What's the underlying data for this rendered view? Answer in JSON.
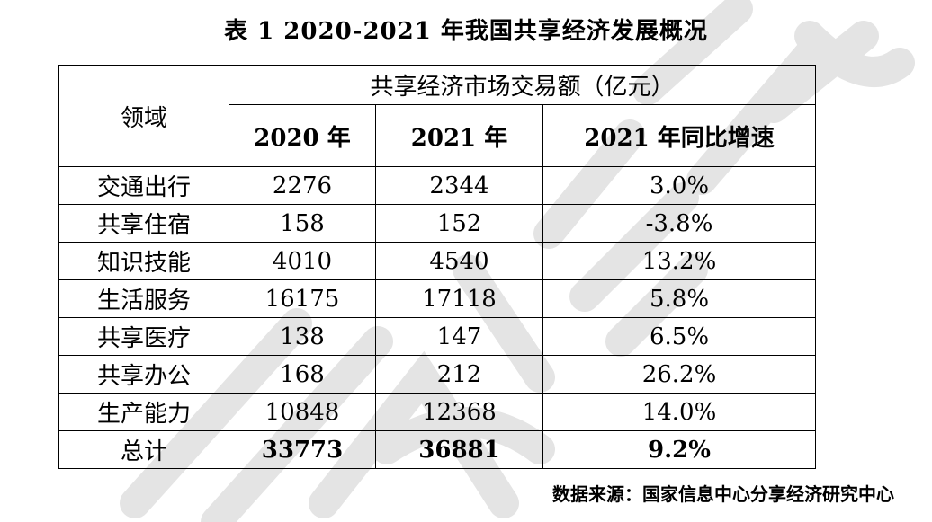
{
  "title": "表 1 2020-2021 年我国共享经济发展概况",
  "table": {
    "domain_header": "领域",
    "group_header": "共享经济市场交易额（亿元）",
    "col_2020": "2020 年",
    "col_2021": "2021 年",
    "col_growth": "2021 年同比增速",
    "rows": [
      {
        "domain": "交通出行",
        "v2020": "2276",
        "v2021": "2344",
        "growth": "3.0%"
      },
      {
        "domain": "共享住宿",
        "v2020": "158",
        "v2021": "152",
        "growth": "-3.8%"
      },
      {
        "domain": "知识技能",
        "v2020": "4010",
        "v2021": "4540",
        "growth": "13.2%"
      },
      {
        "domain": "生活服务",
        "v2020": "16175",
        "v2021": "17118",
        "growth": "5.8%"
      },
      {
        "domain": "共享医疗",
        "v2020": "138",
        "v2021": "147",
        "growth": "6.5%"
      },
      {
        "domain": "共享办公",
        "v2020": "168",
        "v2021": "212",
        "growth": "26.2%"
      },
      {
        "domain": "生产能力",
        "v2020": "10848",
        "v2021": "12368",
        "growth": "14.0%"
      }
    ],
    "total": {
      "domain": "总计",
      "v2020": "33773",
      "v2021": "36881",
      "growth": "9.2%"
    }
  },
  "source": "数据来源：国家信息中心分享经济研究中心",
  "watermark": {
    "color": "#e4e4e4"
  }
}
